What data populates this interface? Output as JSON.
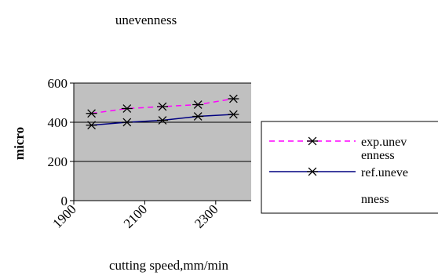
{
  "chart_data": {
    "type": "line",
    "title": "unevenness",
    "xlabel": "cutting speed,mm/min",
    "ylabel": "micro",
    "x": [
      1950,
      2050,
      2150,
      2250,
      2350
    ],
    "xlim": [
      1900,
      2400
    ],
    "ylim": [
      0,
      600
    ],
    "xticks": [
      "1900",
      "2100",
      "2300"
    ],
    "yticks": [
      "0",
      "200",
      "400",
      "600"
    ],
    "grid": true,
    "background": "#c0c0c0",
    "legend_position": "right",
    "series": [
      {
        "name": "exp.unev enness",
        "legend_lines": [
          "exp.unev",
          "enness"
        ],
        "color": "#ff00ff",
        "dash": "dashed",
        "marker": "asterisk",
        "values": [
          445,
          470,
          480,
          490,
          520
        ]
      },
      {
        "name": "ref.uneve nness",
        "legend_lines": [
          "ref.uneve",
          "nness"
        ],
        "color": "#000080",
        "dash": "solid",
        "marker": "asterisk",
        "values": [
          385,
          400,
          410,
          430,
          440
        ]
      }
    ]
  }
}
